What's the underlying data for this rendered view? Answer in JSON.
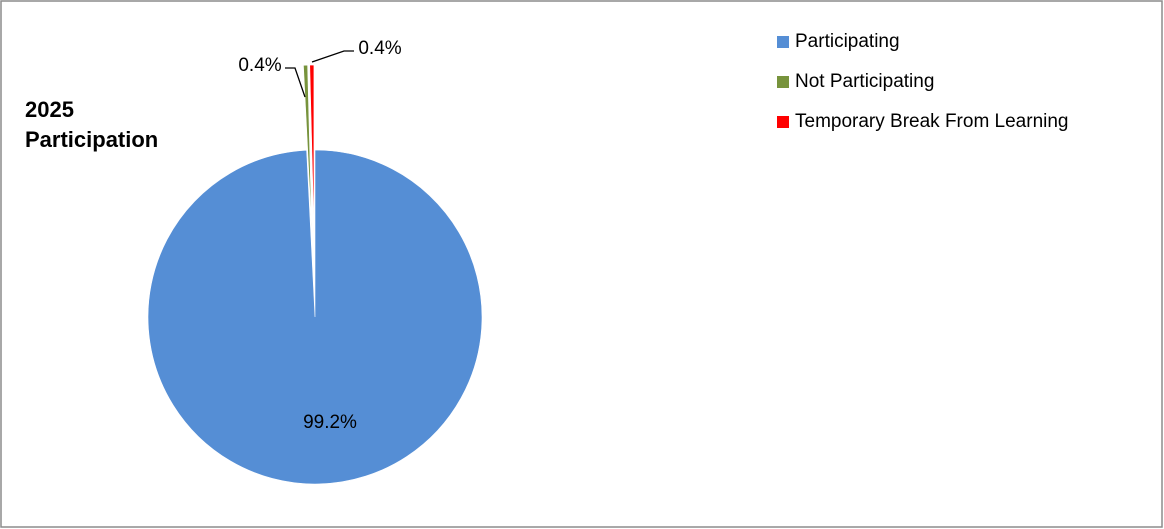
{
  "chart_data": {
    "type": "pie",
    "title": "2025 Participation",
    "categories": [
      "Participating",
      "Not Participating",
      "Temporary Break From Learning"
    ],
    "values": [
      99.2,
      0.4,
      0.4
    ],
    "value_labels": [
      "99.2%",
      "0.4%",
      "0.4%"
    ],
    "colors": [
      "#558ed5",
      "#77933c",
      "#ff0000"
    ],
    "legend": "top-right"
  }
}
